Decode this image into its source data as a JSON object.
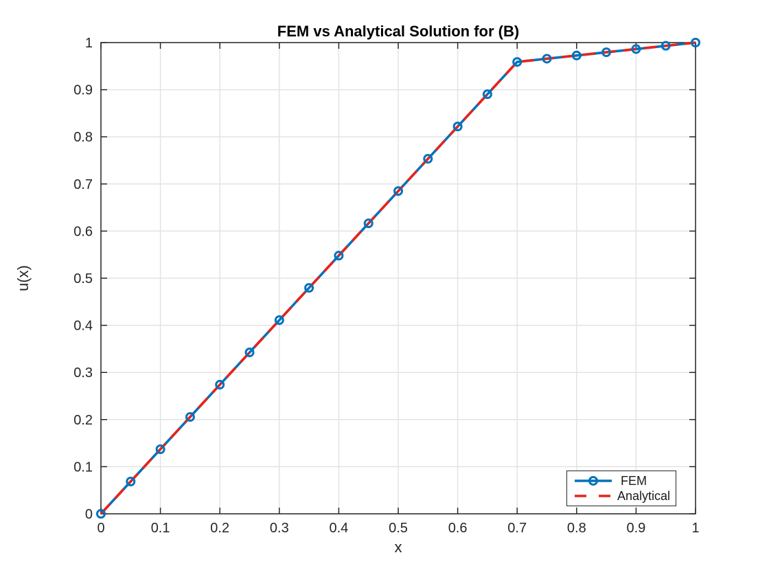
{
  "figure": {
    "background": "#ffffff"
  },
  "chart_data": {
    "type": "line",
    "title": "FEM vs Analytical Solution for (B)",
    "xlabel": "x",
    "ylabel": "u(x)",
    "xlim": [
      0,
      1
    ],
    "ylim": [
      0,
      1
    ],
    "grid": true,
    "x_ticks": [
      0,
      0.1,
      0.2,
      0.3,
      0.4,
      0.5,
      0.6,
      0.7,
      0.8,
      0.9,
      1
    ],
    "x_tick_labels": [
      "0",
      "0.1",
      "0.2",
      "0.3",
      "0.4",
      "0.5",
      "0.6",
      "0.7",
      "0.8",
      "0.9",
      "1"
    ],
    "y_ticks": [
      0,
      0.1,
      0.2,
      0.3,
      0.4,
      0.5,
      0.6,
      0.7,
      0.8,
      0.9,
      1
    ],
    "y_tick_labels": [
      "0",
      "0.1",
      "0.2",
      "0.3",
      "0.4",
      "0.5",
      "0.6",
      "0.7",
      "0.8",
      "0.9",
      "1"
    ],
    "x": [
      0,
      0.05,
      0.1,
      0.15,
      0.2,
      0.25,
      0.3,
      0.35,
      0.4,
      0.45,
      0.5,
      0.55,
      0.6,
      0.65,
      0.7,
      0.75,
      0.8,
      0.85,
      0.9,
      0.95,
      1
    ],
    "series": [
      {
        "name": "FEM",
        "color": "#0072BD",
        "style": "solid",
        "marker": "circle",
        "values": [
          0,
          0.0685,
          0.137,
          0.2055,
          0.274,
          0.3425,
          0.411,
          0.4795,
          0.5479,
          0.6164,
          0.6849,
          0.7534,
          0.8219,
          0.8904,
          0.9589,
          0.9658,
          0.9726,
          0.9795,
          0.9863,
          0.9932,
          1
        ]
      },
      {
        "name": "Analytical",
        "color": "#E8231A",
        "style": "dashed",
        "marker": "none",
        "values": [
          0,
          0.0685,
          0.137,
          0.2055,
          0.274,
          0.3425,
          0.411,
          0.4795,
          0.5479,
          0.6164,
          0.6849,
          0.7534,
          0.8219,
          0.8904,
          0.9589,
          0.9658,
          0.9726,
          0.9795,
          0.9863,
          0.9932,
          1
        ]
      }
    ],
    "legend": {
      "position": "bottom-right",
      "entries": [
        "FEM",
        "Analytical"
      ]
    }
  }
}
